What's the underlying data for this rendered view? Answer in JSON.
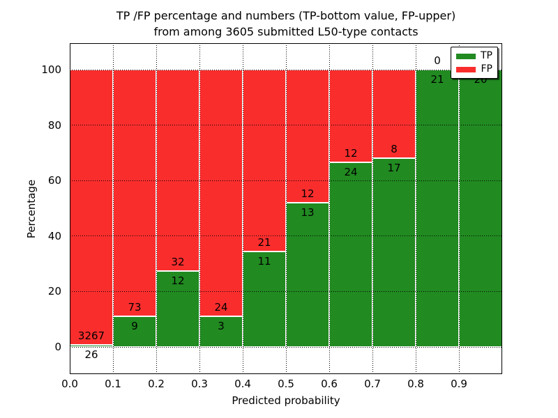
{
  "chart_data": {
    "type": "bar",
    "stacked": true,
    "title_lines": [
      "TP /FP percentage and numbers (TP-bottom value, FP-upper)",
      "from among 3605 submitted L50-type contacts"
    ],
    "title": "TP /FP percentage and numbers (TP-bottom value, FP-upper) from among 3605 submitted L50-type contacts",
    "xlabel": "Predicted probability",
    "ylabel": "Percentage",
    "total_contacts": 3605,
    "x_tick_labels": [
      "0.0",
      "0.1",
      "0.2",
      "0.3",
      "0.4",
      "0.5",
      "0.6",
      "0.7",
      "0.8",
      "0.9"
    ],
    "y_ticks": [
      0,
      20,
      40,
      60,
      80,
      100
    ],
    "y_tick_labels": [
      "0",
      "20",
      "40",
      "60",
      "80",
      "100"
    ],
    "xlim": [
      0.0,
      1.0
    ],
    "ylim": [
      -9.8,
      109.5
    ],
    "grid": "dotted",
    "bar_bin_width": 0.1,
    "legend": {
      "position": "upper right",
      "entries": [
        {
          "label": "TP",
          "color": "#218a21"
        },
        {
          "label": "FP",
          "color": "#fa2d2d"
        }
      ]
    },
    "bins": [
      {
        "range": [
          0.0,
          0.1
        ],
        "tp": 26,
        "fp": 3267,
        "tp_pct": 0.79
      },
      {
        "range": [
          0.1,
          0.2
        ],
        "tp": 9,
        "fp": 73,
        "tp_pct": 10.98
      },
      {
        "range": [
          0.2,
          0.3
        ],
        "tp": 12,
        "fp": 32,
        "tp_pct": 27.27
      },
      {
        "range": [
          0.3,
          0.4
        ],
        "tp": 3,
        "fp": 24,
        "tp_pct": 11.11
      },
      {
        "range": [
          0.4,
          0.5
        ],
        "tp": 11,
        "fp": 21,
        "tp_pct": 34.38
      },
      {
        "range": [
          0.5,
          0.6
        ],
        "tp": 13,
        "fp": 12,
        "tp_pct": 52.0
      },
      {
        "range": [
          0.6,
          0.7
        ],
        "tp": 24,
        "fp": 12,
        "tp_pct": 66.67
      },
      {
        "range": [
          0.7,
          0.8
        ],
        "tp": 17,
        "fp": 8,
        "tp_pct": 68.0
      },
      {
        "range": [
          0.8,
          0.9
        ],
        "tp": 21,
        "fp": 0,
        "tp_pct": 100.0
      },
      {
        "range": [
          0.9,
          1.0
        ],
        "tp": 20,
        "fp": 0,
        "tp_pct": 100.0
      }
    ]
  },
  "colors": {
    "tp": "#218a21",
    "fp": "#fa2d2d",
    "grid": "#000000",
    "text": "#000000",
    "background": "#ffffff"
  }
}
